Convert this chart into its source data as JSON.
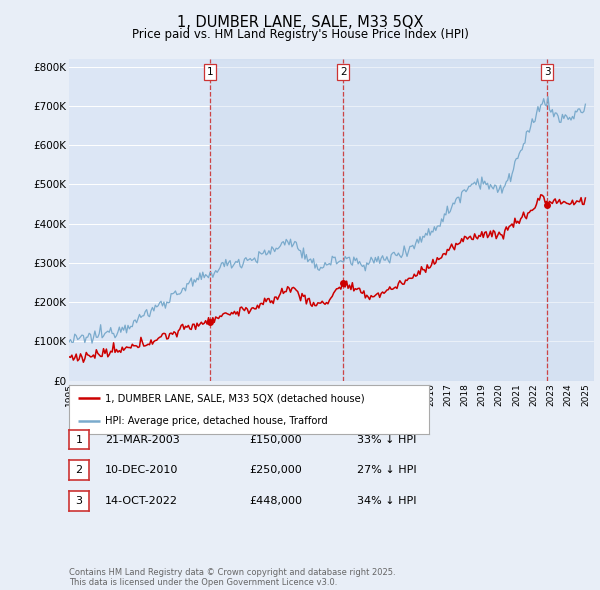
{
  "title": "1, DUMBER LANE, SALE, M33 5QX",
  "subtitle": "Price paid vs. HM Land Registry's House Price Index (HPI)",
  "ylabel_ticks": [
    "£0",
    "£100K",
    "£200K",
    "£300K",
    "£400K",
    "£500K",
    "£600K",
    "£700K",
    "£800K"
  ],
  "ytick_values": [
    0,
    100000,
    200000,
    300000,
    400000,
    500000,
    600000,
    700000,
    800000
  ],
  "ylim": [
    0,
    820000
  ],
  "xlim_start": 1995.0,
  "xlim_end": 2025.5,
  "bg_color": "#e8eef7",
  "plot_bg_color": "#dce6f5",
  "grid_color": "#ffffff",
  "shade_color": "#c8d8ee",
  "red_color": "#cc0000",
  "blue_color": "#7aaacc",
  "dashed_line_color": "#cc3333",
  "legend_label_red": "1, DUMBER LANE, SALE, M33 5QX (detached house)",
  "legend_label_blue": "HPI: Average price, detached house, Trafford",
  "transactions": [
    {
      "num": 1,
      "date": "21-MAR-2003",
      "price": 150000,
      "pct": "33% ↓ HPI",
      "x": 2003.21
    },
    {
      "num": 2,
      "date": "10-DEC-2010",
      "price": 250000,
      "pct": "27% ↓ HPI",
      "x": 2010.94
    },
    {
      "num": 3,
      "date": "14-OCT-2022",
      "price": 448000,
      "pct": "34% ↓ HPI",
      "x": 2022.79
    }
  ],
  "footer": "Contains HM Land Registry data © Crown copyright and database right 2025.\nThis data is licensed under the Open Government Licence v3.0.",
  "hpi_start_year": 1995,
  "hpi_end_year": 2025
}
